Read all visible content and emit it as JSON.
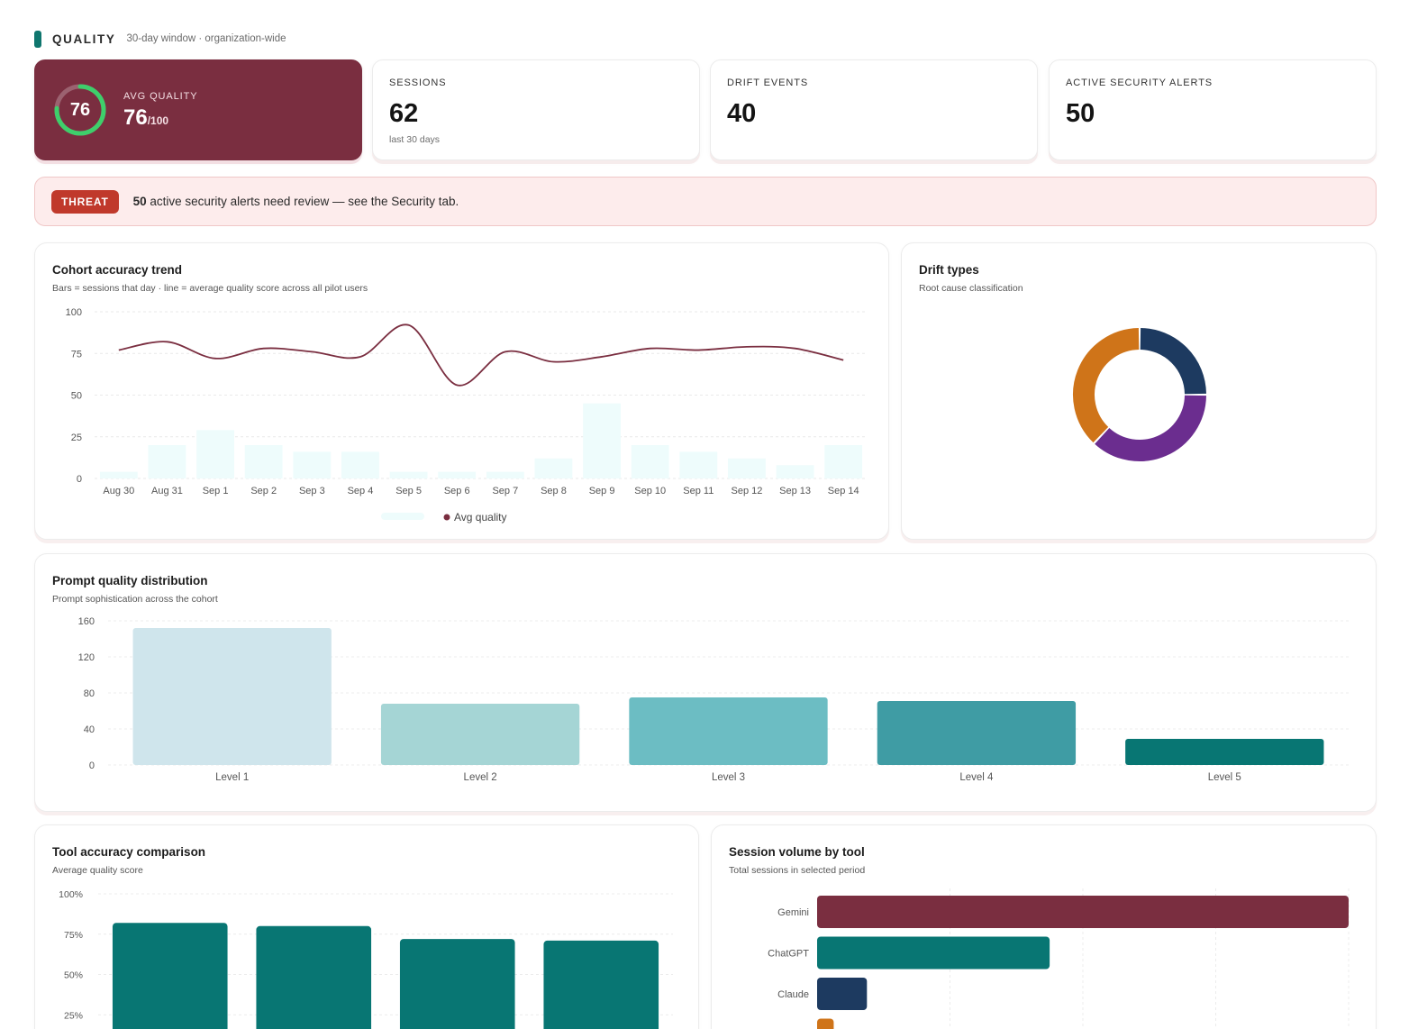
{
  "header": {
    "title": "QUALITY",
    "subtitle": "30-day window · organization-wide"
  },
  "kpis": {
    "quality": {
      "label": "AVG QUALITY",
      "value": "76",
      "denominator": "/100",
      "ring_value": 76,
      "ring_color": "#3ecf6b"
    },
    "sessions": {
      "label": "SESSIONS",
      "value": "62",
      "foot": "last 30 days"
    },
    "drift": {
      "label": "DRIFT EVENTS",
      "value": "40"
    },
    "alerts": {
      "label": "ACTIVE SECURITY ALERTS",
      "value": "50"
    }
  },
  "alert_banner": {
    "badge": "THREAT",
    "count": "50",
    "message": " active security alerts need review — see the Security tab."
  },
  "cards": {
    "cohort": {
      "title": "Cohort accuracy trend",
      "subtitle": "Bars = sessions that day · line = average quality score across all pilot users"
    },
    "drift": {
      "title": "Drift types",
      "subtitle": "Root cause classification"
    },
    "prompt": {
      "title": "Prompt quality distribution",
      "subtitle": "Prompt sophistication across the cohort"
    },
    "tool_acc": {
      "title": "Tool accuracy comparison",
      "subtitle": "Average quality score"
    },
    "session_vol": {
      "title": "Session volume by tool",
      "subtitle": "Total sessions in selected period"
    }
  },
  "chart_data": [
    {
      "id": "cohort",
      "type": "bar",
      "categories": [
        "Aug 30",
        "Aug 31",
        "Sep 1",
        "Sep 2",
        "Sep 3",
        "Sep 4",
        "Sep 5",
        "Sep 6",
        "Sep 7",
        "Sep 8",
        "Sep 9",
        "Sep 10",
        "Sep 11",
        "Sep 12",
        "Sep 13",
        "Sep 14"
      ],
      "series": [
        {
          "name": "",
          "type": "bar",
          "values": [
            4,
            20,
            29,
            20,
            16,
            16,
            4,
            4,
            4,
            12,
            45,
            20,
            16,
            12,
            8,
            20
          ],
          "color": "#eefcfc"
        },
        {
          "name": "Avg quality",
          "type": "line",
          "values": [
            77,
            82,
            72,
            78,
            76,
            73,
            92,
            56,
            76,
            70,
            73,
            78,
            77,
            79,
            78,
            71
          ],
          "color": "#7a2e40"
        }
      ],
      "ylim": [
        0,
        100
      ],
      "yticks": [
        0,
        25,
        50,
        75,
        100
      ],
      "legend": "bottom",
      "grid": true
    },
    {
      "id": "drift",
      "type": "pie",
      "donut": true,
      "slices": [
        {
          "value": 25,
          "color": "#1d3a60"
        },
        {
          "value": 37,
          "color": "#6b2d8f"
        },
        {
          "value": 38,
          "color": "#cf7419"
        }
      ]
    },
    {
      "id": "prompt",
      "type": "bar",
      "categories": [
        "Level 1",
        "Level 2",
        "Level 3",
        "Level 4",
        "Level 5"
      ],
      "values": [
        152,
        68,
        75,
        71,
        29
      ],
      "colors": [
        "#cfe5ec",
        "#a5d5d5",
        "#6cbdc3",
        "#3f9ca4",
        "#087673"
      ],
      "ylim": [
        0,
        160
      ],
      "yticks": [
        0,
        40,
        80,
        120,
        160
      ],
      "grid": true
    },
    {
      "id": "tool_acc",
      "type": "bar",
      "categories": [
        "",
        "",
        "",
        ""
      ],
      "values": [
        0.82,
        0.8,
        0.72,
        0.71
      ],
      "color": "#087673",
      "ylim": [
        0,
        1
      ],
      "yticks": [
        "25%",
        "50%",
        "75%",
        "100%"
      ],
      "grid": true
    },
    {
      "id": "session_vol",
      "type": "bar",
      "orientation": "horizontal",
      "categories": [
        "Gemini",
        "ChatGPT",
        "Claude",
        ""
      ],
      "values": [
        32,
        14,
        3,
        1
      ],
      "colors": [
        "#7a2e40",
        "#087673",
        "#1d3a60",
        "#cf7419"
      ],
      "xlim": [
        0,
        32
      ],
      "grid": true
    }
  ]
}
